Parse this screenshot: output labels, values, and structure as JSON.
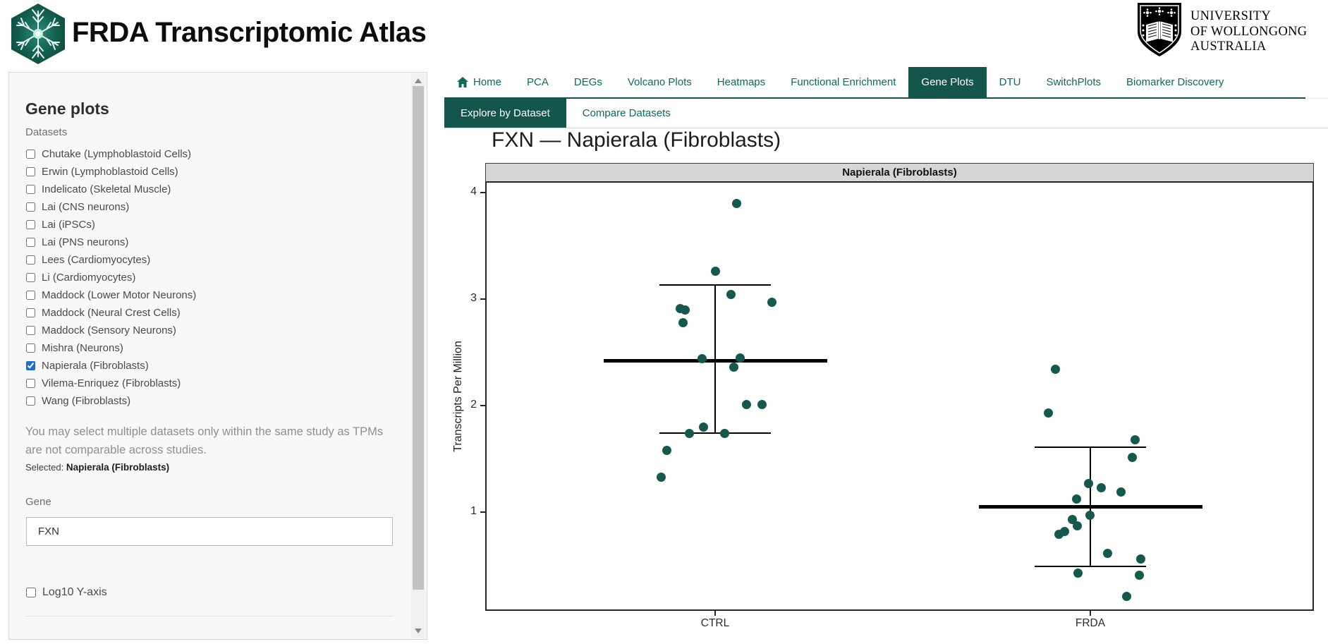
{
  "header": {
    "app_title": "FRDA Transcriptomic Atlas",
    "uow_logo_lines": [
      "UNIVERSITY",
      "OF WOLLONGONG",
      "AUSTRALIA"
    ]
  },
  "nav": {
    "items": [
      {
        "label": "Home",
        "icon": "home",
        "active": false
      },
      {
        "label": "PCA",
        "active": false
      },
      {
        "label": "DEGs",
        "active": false
      },
      {
        "label": "Volcano Plots",
        "active": false
      },
      {
        "label": "Heatmaps",
        "active": false
      },
      {
        "label": "Functional Enrichment",
        "active": false
      },
      {
        "label": "Gene Plots",
        "active": true
      },
      {
        "label": "DTU",
        "active": false
      },
      {
        "label": "SwitchPlots",
        "active": false
      },
      {
        "label": "Biomarker Discovery",
        "active": false
      }
    ]
  },
  "subtabs": [
    {
      "label": "Explore by Dataset",
      "active": true
    },
    {
      "label": "Compare Datasets",
      "active": false
    }
  ],
  "sidebar": {
    "title": "Gene plots",
    "datasets_label": "Datasets",
    "datasets": [
      {
        "label": "Chutake (Lymphoblastoid Cells)",
        "checked": false
      },
      {
        "label": "Erwin (Lymphoblastoid Cells)",
        "checked": false
      },
      {
        "label": "Indelicato (Skeletal Muscle)",
        "checked": false
      },
      {
        "label": "Lai (CNS neurons)",
        "checked": false
      },
      {
        "label": "Lai (iPSCs)",
        "checked": false
      },
      {
        "label": "Lai (PNS neurons)",
        "checked": false
      },
      {
        "label": "Lees (Cardiomyocytes)",
        "checked": false
      },
      {
        "label": "Li (Cardiomyocytes)",
        "checked": false
      },
      {
        "label": "Maddock (Lower Motor Neurons)",
        "checked": false
      },
      {
        "label": "Maddock (Neural Crest Cells)",
        "checked": false
      },
      {
        "label": "Maddock (Sensory Neurons)",
        "checked": false
      },
      {
        "label": "Mishra (Neurons)",
        "checked": false
      },
      {
        "label": "Napierala (Fibroblasts)",
        "checked": true
      },
      {
        "label": "Vilema-Enriquez (Fibroblasts)",
        "checked": false
      },
      {
        "label": "Wang (Fibroblasts)",
        "checked": false
      }
    ],
    "note": "You may select multiple datasets only within the same study as TPMs are not comparable across studies.",
    "selected_label": "Selected:",
    "selected_value": "Napierala (Fibroblasts)",
    "gene_label": "Gene",
    "gene_value": "FXN",
    "log10_label": "Log10 Y-axis"
  },
  "colors": {
    "accent_teal": "#0e6a5e",
    "active_tab_bg": "#14564c",
    "point": "#15594e",
    "checkbox_checked": "#1a6fd4",
    "strip_bg": "#d6d6d6"
  },
  "chart_data": {
    "type": "scatter",
    "title": "FXN — Napierala (Fibroblasts)",
    "facet_label": "Napierala (Fibroblasts)",
    "ylabel": "Transcripts Per Million",
    "xlabel": "",
    "yticks": [
      1,
      2,
      3,
      4
    ],
    "ylim": [
      0.07,
      4.1
    ],
    "grid": false,
    "categories": [
      "CTRL",
      "FRDA"
    ],
    "series": [
      {
        "name": "CTRL",
        "mean": 2.42,
        "upper": 3.13,
        "lower": 1.74,
        "points": [
          [
            30,
            3.9
          ],
          [
            0,
            3.26
          ],
          [
            22,
            3.04
          ],
          [
            80,
            2.97
          ],
          [
            -50,
            2.91
          ],
          [
            -43,
            2.9
          ],
          [
            -46,
            2.78
          ],
          [
            35,
            2.45
          ],
          [
            -19,
            2.44
          ],
          [
            26,
            2.36
          ],
          [
            44,
            2.01
          ],
          [
            66,
            2.01
          ],
          [
            -17,
            1.8
          ],
          [
            -37,
            1.74
          ],
          [
            13,
            1.74
          ],
          [
            -69,
            1.58
          ],
          [
            -77,
            1.33
          ]
        ]
      },
      {
        "name": "FRDA",
        "mean": 1.05,
        "upper": 1.61,
        "lower": 0.49,
        "points": [
          [
            -50,
            2.34
          ],
          [
            -60,
            1.93
          ],
          [
            63,
            1.68
          ],
          [
            59,
            1.51
          ],
          [
            -3,
            1.27
          ],
          [
            15,
            1.23
          ],
          [
            43,
            1.19
          ],
          [
            -20,
            1.12
          ],
          [
            -1,
            0.97
          ],
          [
            -26,
            0.93
          ],
          [
            -19,
            0.87
          ],
          [
            -37,
            0.82
          ],
          [
            -45,
            0.79
          ],
          [
            24,
            0.61
          ],
          [
            71,
            0.56
          ],
          [
            -18,
            0.43
          ],
          [
            69,
            0.41
          ],
          [
            51,
            0.21
          ]
        ]
      }
    ]
  }
}
